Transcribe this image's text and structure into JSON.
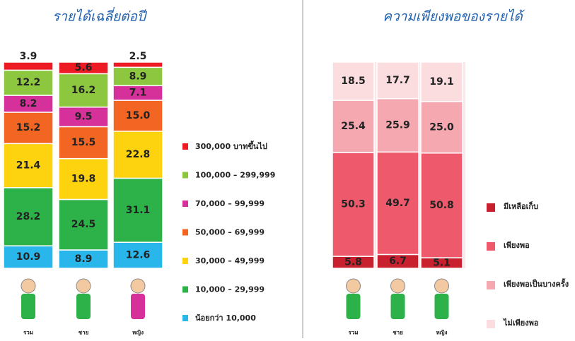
{
  "chart_data": [
    {
      "type": "stacked-bar",
      "title": "รายได้เฉลี่ยต่อปี",
      "categories": [
        "รวม",
        "ชาย",
        "หญิง"
      ],
      "legend_reversed": true,
      "series": [
        {
          "name": "น้อยกว่า 10,000",
          "color": "#29b6ea",
          "values": [
            10.9,
            8.9,
            12.6
          ]
        },
        {
          "name": "10,000 – 29,999",
          "color": "#2db24a",
          "values": [
            28.2,
            24.5,
            31.1
          ]
        },
        {
          "name": "30,000 – 49,999",
          "color": "#fdd20e",
          "values": [
            21.4,
            19.8,
            22.8
          ]
        },
        {
          "name": "50,000 – 69,999",
          "color": "#f26522",
          "values": [
            15.2,
            15.5,
            15.0
          ],
          "value_labels": [
            "15.2",
            "15.5",
            "15.0"
          ]
        },
        {
          "name": "70,000 – 99,999",
          "color": "#d6309a",
          "values": [
            8.2,
            9.5,
            7.1
          ]
        },
        {
          "name": "100,000 – 299,999",
          "color": "#8dc63f",
          "values": [
            12.2,
            16.2,
            8.9
          ]
        },
        {
          "name": "300,000 บาทขึ้นไป",
          "color": "#ed1c24",
          "values": [
            3.9,
            5.6,
            2.5
          ]
        }
      ]
    },
    {
      "type": "stacked-bar",
      "title": "ความเพียงพอของรายได้",
      "categories": [
        "รวม",
        "ชาย",
        "หญิง"
      ],
      "legend_reversed": false,
      "series": [
        {
          "name": "มีเหลือเก็บ",
          "color": "#c8202f",
          "values": [
            5.8,
            6.7,
            5.1
          ]
        },
        {
          "name": "เพียงพอ",
          "color": "#ee5a6b",
          "values": [
            50.3,
            49.7,
            50.8
          ]
        },
        {
          "name": "เพียงพอเป็นบางครั้ง",
          "color": "#f5a8b0",
          "values": [
            25.4,
            25.9,
            25.0
          ],
          "value_labels": [
            "25.4",
            "25.9",
            "25.0"
          ]
        },
        {
          "name": "ไม่เพียงพอ",
          "color": "#fbdde0",
          "values": [
            18.5,
            17.7,
            19.1
          ]
        }
      ]
    }
  ]
}
